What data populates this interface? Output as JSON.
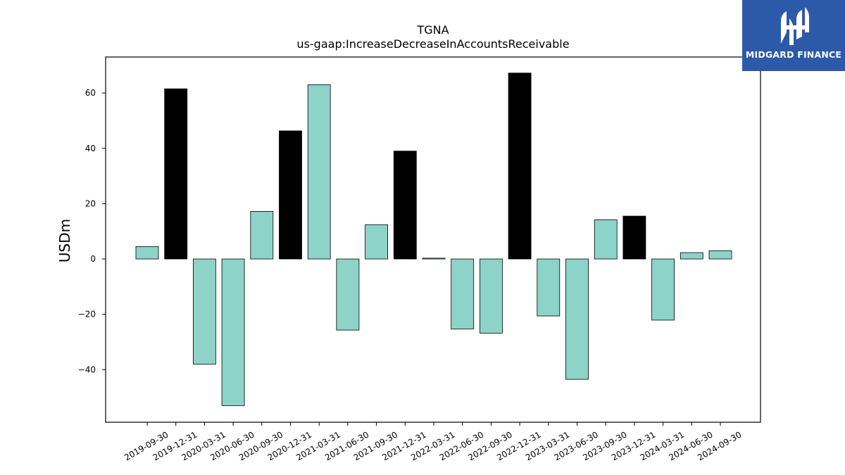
{
  "brand": {
    "name": "MIDGARD FINANCE",
    "background": "#2d5aa8",
    "foreground": "#ffffff"
  },
  "chart_data": {
    "type": "bar",
    "title": "TGNA",
    "subtitle": "us-gaap:IncreaseDecreaseInAccountsReceivable",
    "xlabel": "",
    "ylabel": "USDm",
    "ylim": [
      -59,
      73
    ],
    "yticks": [
      -40,
      -20,
      0,
      20,
      40,
      60
    ],
    "grid": false,
    "colors": {
      "quarter": "#8dd3c7",
      "year_end": "#000000",
      "edge": "#000000"
    },
    "categories": [
      "2019-09-30",
      "2019-12-31",
      "2020-03-31",
      "2020-06-30",
      "2020-09-30",
      "2020-12-31",
      "2021-03-31",
      "2021-06-30",
      "2021-09-30",
      "2021-12-31",
      "2022-03-31",
      "2022-06-30",
      "2022-09-30",
      "2022-12-31",
      "2023-03-31",
      "2023-06-30",
      "2023-09-30",
      "2023-12-31",
      "2024-03-31",
      "2024-06-30",
      "2024-09-30"
    ],
    "values": [
      4.5,
      61.5,
      -38,
      -53,
      17.2,
      46.3,
      63,
      -25.7,
      12.4,
      39,
      0.3,
      -25.3,
      -26.8,
      67.2,
      -20.6,
      -43.5,
      14.2,
      15.5,
      -22.1,
      2.3,
      3
    ]
  }
}
